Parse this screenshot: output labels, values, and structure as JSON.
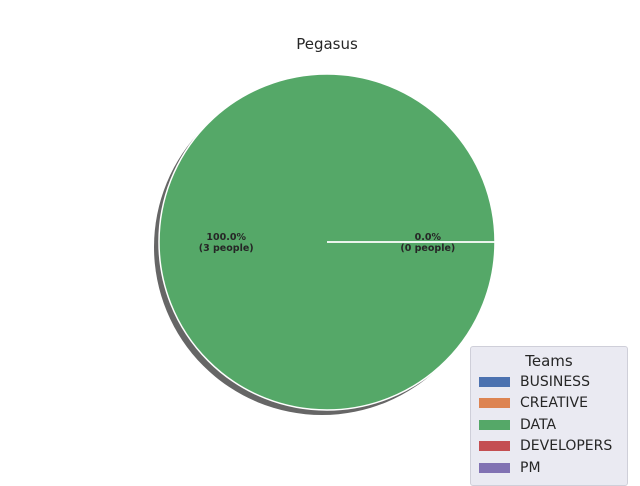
{
  "chart_data": {
    "type": "pie",
    "title": "Pegasus",
    "categories": [
      "BUSINESS",
      "CREATIVE",
      "DATA",
      "DEVELOPERS",
      "PM"
    ],
    "values": [
      0,
      0,
      3,
      0,
      0
    ],
    "colors": [
      "#4c72b0",
      "#dd8452",
      "#55a868",
      "#c44e52",
      "#8172b3"
    ],
    "slice_labels": [
      {
        "percent": "100.0%",
        "people": "(3 people)"
      },
      {
        "percent": "0.0%",
        "people": "(0 people)"
      }
    ],
    "shadow": true,
    "legend": {
      "title": "Teams",
      "placement": "lower-right"
    }
  }
}
